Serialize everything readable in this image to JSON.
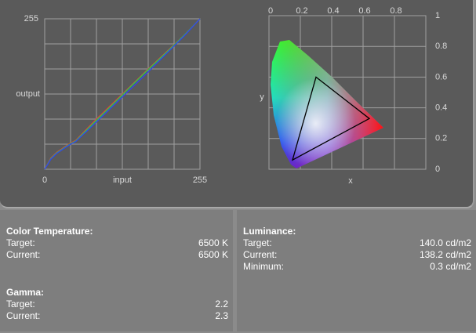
{
  "chart_data": [
    {
      "type": "line",
      "x_label": "input",
      "y_label": "output",
      "x": [
        0,
        10,
        20,
        30,
        40,
        51,
        80,
        110,
        140,
        170,
        200,
        230,
        255
      ],
      "series": [
        {
          "color": "#e03a3a",
          "values": [
            0,
            19,
            29,
            36,
            43,
            49,
            80,
            110,
            140,
            170,
            199,
            228,
            255
          ]
        },
        {
          "color": "#2fc24a",
          "values": [
            0,
            18,
            28,
            35,
            42,
            48,
            78,
            108,
            139,
            169,
            198,
            228,
            255
          ]
        },
        {
          "color": "#3448e6",
          "values": [
            0,
            17,
            27,
            34,
            41,
            47,
            75,
            105,
            135,
            165,
            196,
            227,
            255
          ]
        }
      ],
      "xlim": [
        0,
        255
      ],
      "ylim": [
        0,
        255
      ],
      "xticks": [
        0,
        255
      ],
      "yticks": [
        255
      ],
      "grid": true
    },
    {
      "type": "scatter",
      "x_label": "x",
      "y_label": "y",
      "series": [
        {
          "color": "#000000",
          "x": [
            0.3,
            0.64,
            0.15
          ],
          "values": [
            0.6,
            0.33,
            0.06
          ]
        }
      ],
      "xlim": [
        0,
        1
      ],
      "ylim": [
        0,
        1
      ],
      "xticks": [
        0,
        0.2,
        0.4,
        0.6,
        0.8
      ],
      "yticks": [
        0,
        0.2,
        0.4,
        0.6,
        0.8,
        1
      ],
      "grid": true
    }
  ],
  "panels": [
    {
      "sections": [
        {
          "title": "Color Temperature:",
          "rows": [
            {
              "label": "Target:",
              "value": "6500 K"
            },
            {
              "label": "Current:",
              "value": "6500 K"
            }
          ]
        },
        {
          "title": "Gamma:",
          "rows": [
            {
              "label": "Target:",
              "value": "2.2"
            },
            {
              "label": "Current:",
              "value": "2.3"
            }
          ]
        }
      ]
    },
    {
      "sections": [
        {
          "title": "Luminance:",
          "rows": [
            {
              "label": "Target:",
              "value": "140.0 cd/m2"
            },
            {
              "label": "Current:",
              "value": "138.2 cd/m2"
            },
            {
              "label": "Minimum:",
              "value": "0.3 cd/m2"
            }
          ]
        }
      ]
    }
  ]
}
